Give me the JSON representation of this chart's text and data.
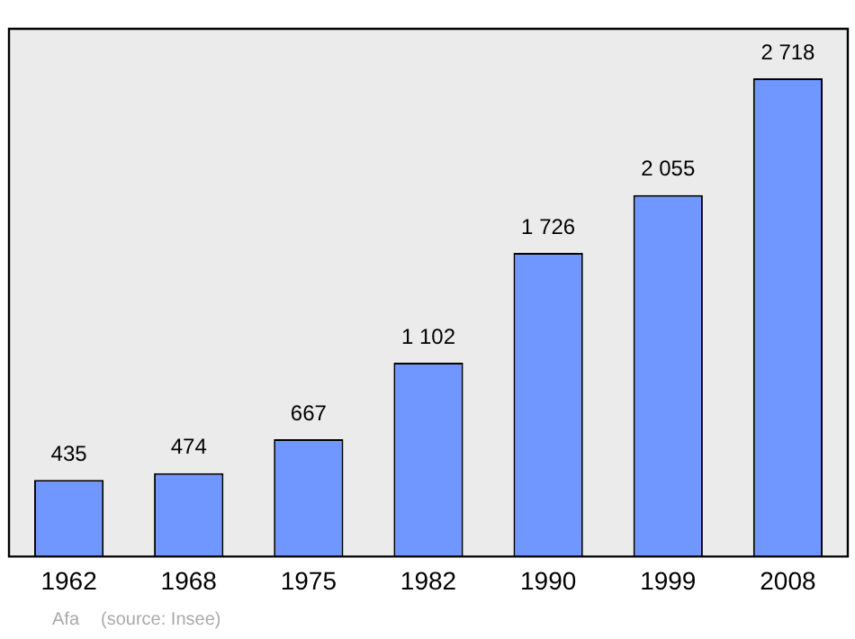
{
  "chart_data": {
    "type": "bar",
    "categories": [
      "1962",
      "1968",
      "1975",
      "1982",
      "1990",
      "1999",
      "2008"
    ],
    "values": [
      435,
      474,
      667,
      1102,
      1726,
      2055,
      2718
    ],
    "value_labels": [
      "435",
      "474",
      "667",
      "1 102",
      "1 726",
      "2 055",
      "2 718"
    ],
    "color": "#7096ff",
    "annotations": [
      "Afa",
      "(source: Insee)"
    ]
  }
}
